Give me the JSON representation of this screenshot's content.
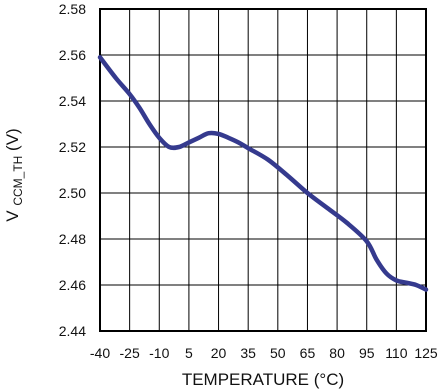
{
  "chart_data": {
    "type": "line",
    "title": "",
    "xlabel": "TEMPERATURE (°C)",
    "ylabel": {
      "main": "V",
      "subscript": "CCM_TH",
      "unit": " (V)"
    },
    "xlim": [
      -40,
      125
    ],
    "ylim": [
      2.44,
      2.58
    ],
    "x_ticks": [
      -40,
      -25,
      -10,
      5,
      20,
      35,
      50,
      65,
      80,
      95,
      110,
      125
    ],
    "x_tick_labels": [
      "-40",
      "-25",
      "-10",
      "5",
      "20",
      "35",
      "50",
      "65",
      "80",
      "95",
      "110",
      "125"
    ],
    "y_ticks": [
      2.44,
      2.46,
      2.48,
      2.5,
      2.52,
      2.54,
      2.56,
      2.58
    ],
    "y_tick_labels": [
      "2.44",
      "2.46",
      "2.48",
      "2.50",
      "2.52",
      "2.54",
      "2.56",
      "2.58"
    ],
    "grid": true,
    "color": "#353a8e",
    "series": [
      {
        "x": [
          -40,
          -32,
          -25,
          -20,
          -15,
          -10,
          -5,
          0,
          5,
          10,
          15,
          20,
          25,
          30,
          35,
          45,
          55,
          65,
          75,
          85,
          95,
          100,
          105,
          110,
          115,
          120,
          125
        ],
        "y": [
          2.559,
          2.55,
          2.543,
          2.537,
          2.53,
          2.524,
          2.52,
          2.52,
          2.522,
          2.524,
          2.526,
          2.5257,
          2.524,
          2.522,
          2.5195,
          2.5145,
          2.5075,
          2.5,
          2.4935,
          2.487,
          2.479,
          2.471,
          2.465,
          2.462,
          2.461,
          2.46,
          2.458
        ]
      }
    ]
  }
}
